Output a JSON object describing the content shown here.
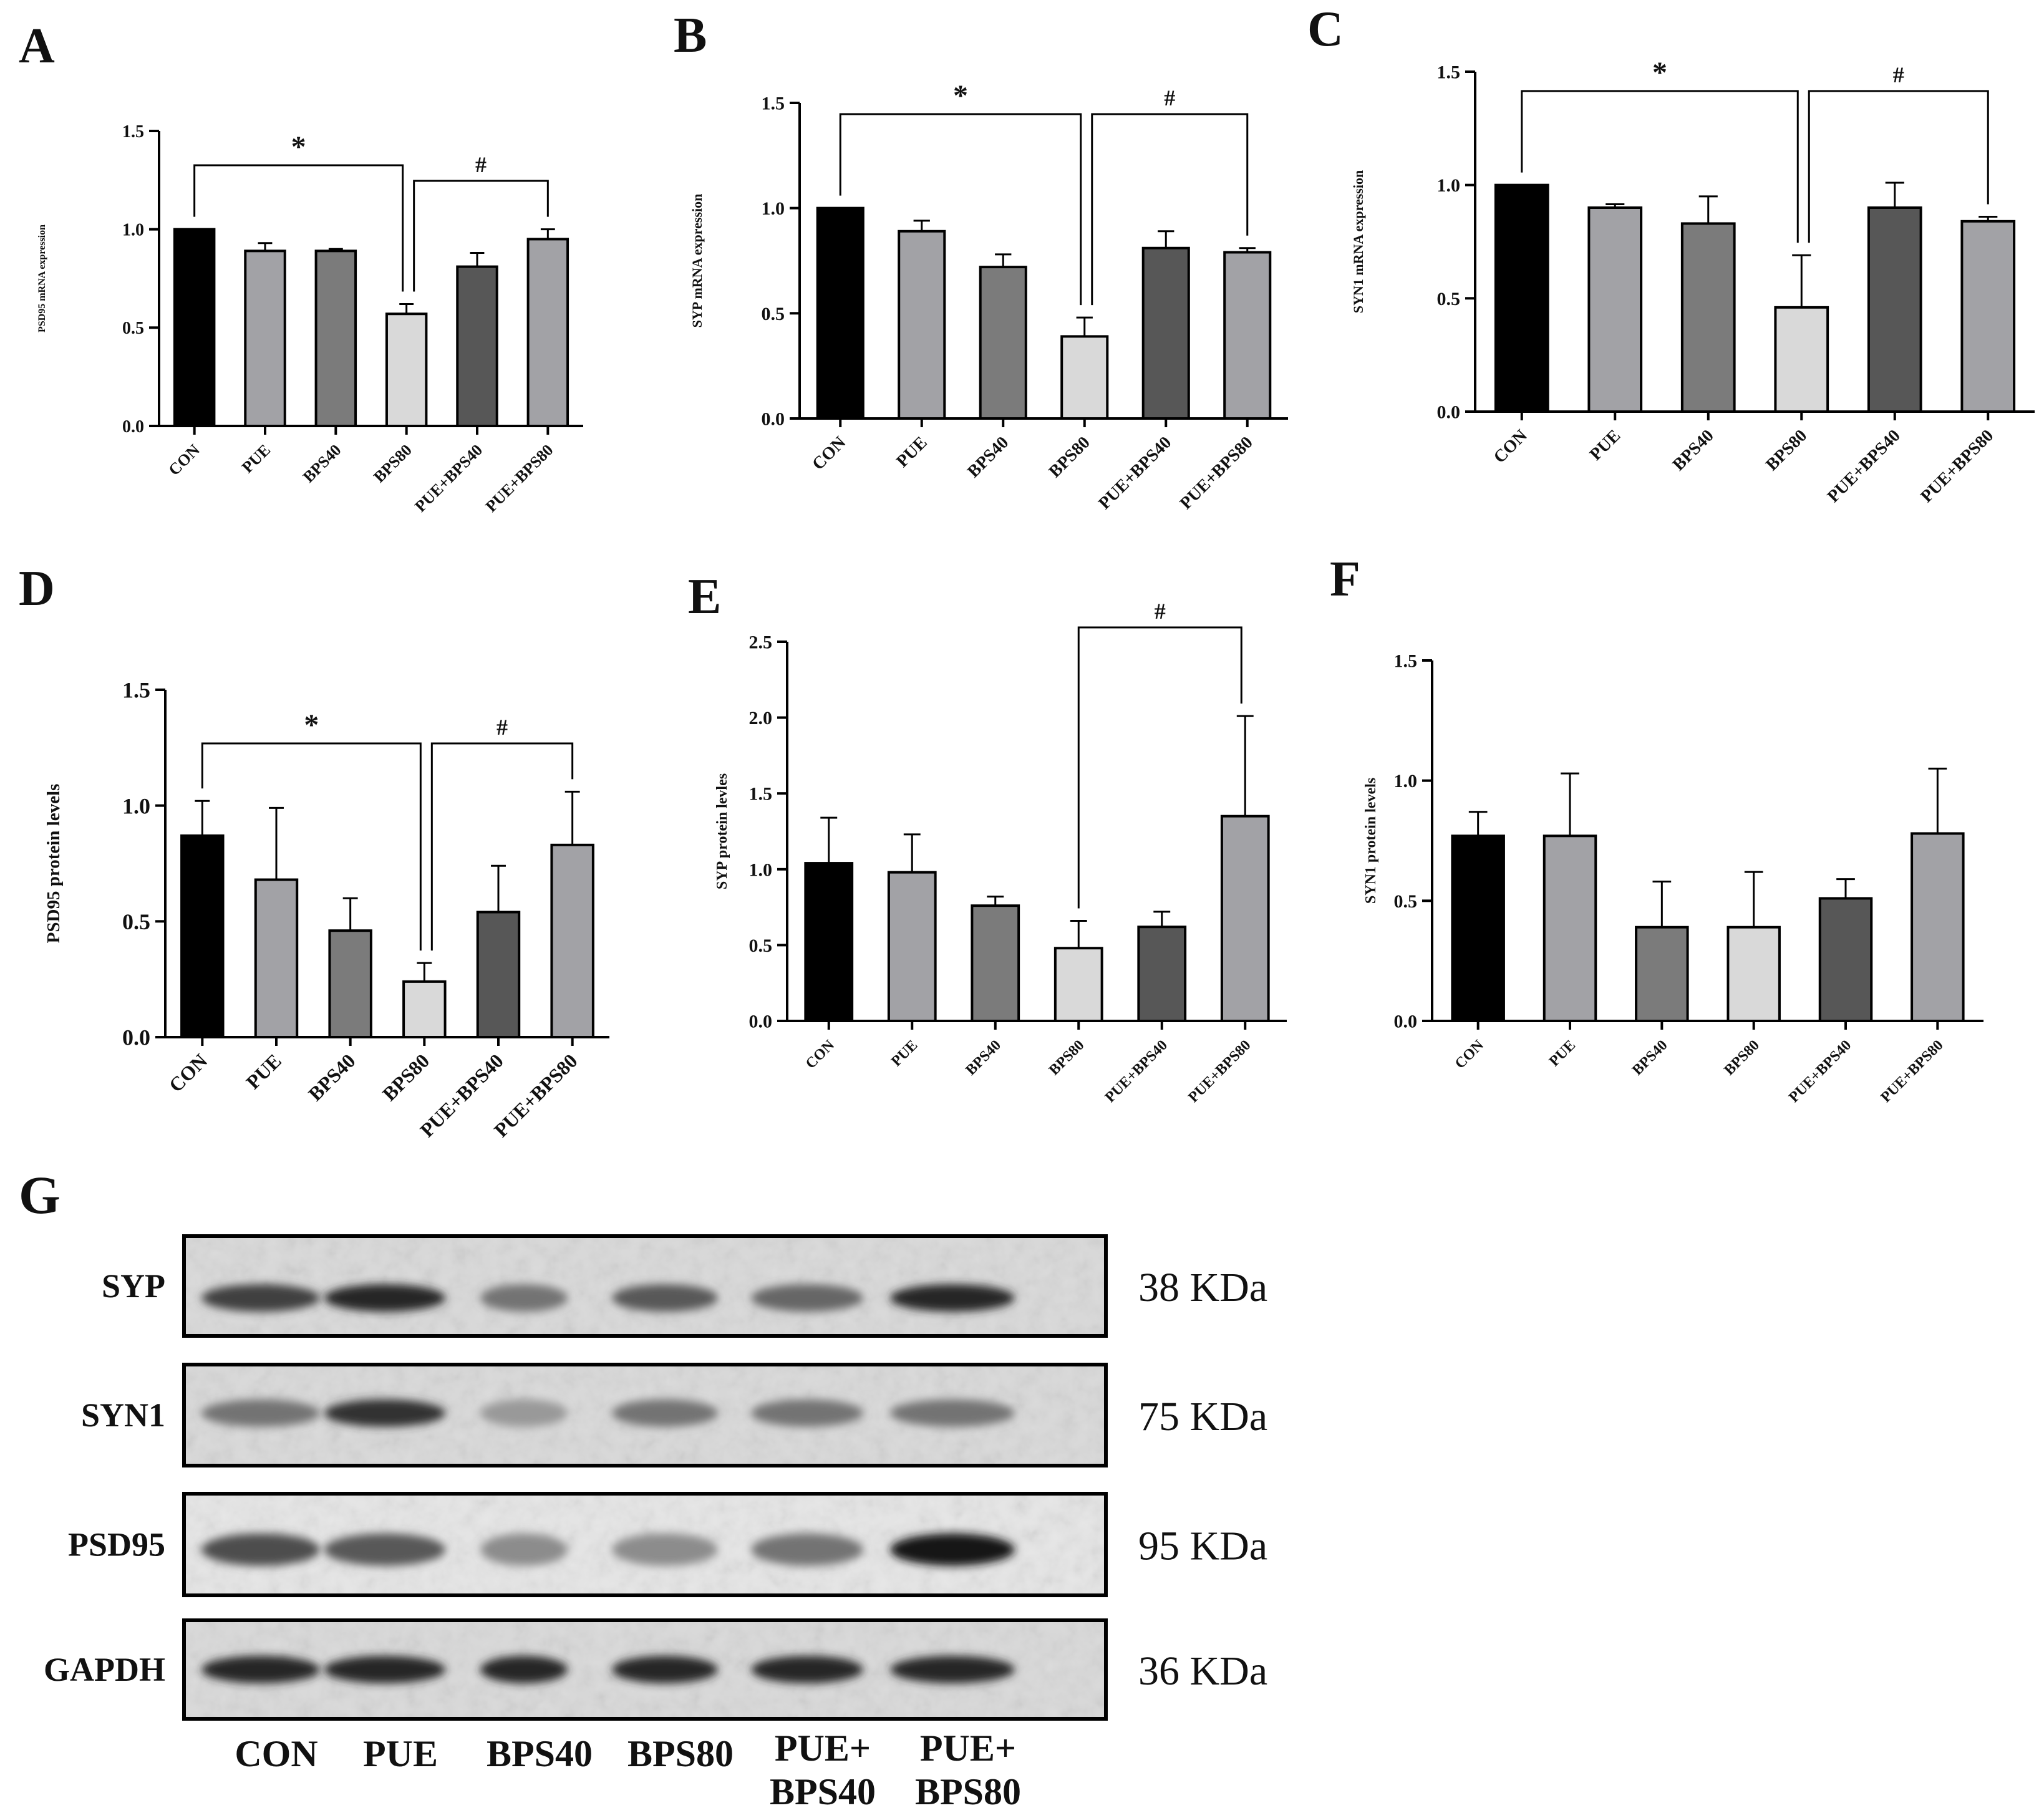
{
  "figure": {
    "panel_letters": [
      "A",
      "B",
      "C",
      "D",
      "E",
      "F",
      "G"
    ]
  },
  "colors": {
    "CON": "#000000",
    "PUE": "#a2a2a6",
    "BPS40": "#7b7b7b",
    "BPS80": "#d9d9d9",
    "PUE+BPS40": "#575757",
    "PUE+BPS80": "#a2a2a6"
  },
  "chart_data": [
    {
      "panel": "A",
      "type": "bar",
      "categories": [
        "CON",
        "PUE",
        "BPS40",
        "BPS80",
        "PUE+BPS40",
        "PUE+BPS80"
      ],
      "values": [
        1.0,
        0.89,
        0.89,
        0.57,
        0.81,
        0.95
      ],
      "errors": [
        0.0,
        0.04,
        0.01,
        0.05,
        0.07,
        0.05
      ],
      "ylabel": "PSD95 mRNA expression",
      "ylim": [
        0,
        1.5
      ],
      "yticks": [
        "0.0",
        "0.5",
        "1.0",
        "1.5"
      ],
      "significance": [
        {
          "symbol": "*",
          "from": "CON",
          "to": "BPS80"
        },
        {
          "symbol": "#",
          "from": "BPS80",
          "to": "PUE+BPS80"
        }
      ]
    },
    {
      "panel": "B",
      "type": "bar",
      "categories": [
        "CON",
        "PUE",
        "BPS40",
        "BPS80",
        "PUE+BPS40",
        "PUE+BPS80"
      ],
      "values": [
        1.0,
        0.89,
        0.72,
        0.39,
        0.81,
        0.79
      ],
      "errors": [
        0.0,
        0.05,
        0.06,
        0.09,
        0.08,
        0.02
      ],
      "ylabel": "SYP mRNA expression",
      "ylim": [
        0,
        1.5
      ],
      "yticks": [
        "0.0",
        "0.5",
        "1.0",
        "1.5"
      ],
      "significance": [
        {
          "symbol": "*",
          "from": "CON",
          "to": "BPS80"
        },
        {
          "symbol": "#",
          "from": "BPS80",
          "to": "PUE+BPS80"
        }
      ]
    },
    {
      "panel": "C",
      "type": "bar",
      "categories": [
        "CON",
        "PUE",
        "BPS40",
        "BPS80",
        "PUE+BPS40",
        "PUE+BPS80"
      ],
      "values": [
        1.0,
        0.9,
        0.83,
        0.46,
        0.9,
        0.84
      ],
      "errors": [
        0.0,
        0.015,
        0.12,
        0.23,
        0.11,
        0.02
      ],
      "ylabel": "SYN1 mRNA expression",
      "ylim": [
        0,
        1.5
      ],
      "yticks": [
        "0.0",
        "0.5",
        "1.0",
        "1.5"
      ],
      "significance": [
        {
          "symbol": "*",
          "from": "CON",
          "to": "BPS80"
        },
        {
          "symbol": "#",
          "from": "BPS80",
          "to": "PUE+BPS80"
        }
      ]
    },
    {
      "panel": "D",
      "type": "bar",
      "categories": [
        "CON",
        "PUE",
        "BPS40",
        "BPS80",
        "PUE+BPS40",
        "PUE+BPS80"
      ],
      "values": [
        0.87,
        0.68,
        0.46,
        0.24,
        0.54,
        0.83
      ],
      "errors": [
        0.15,
        0.31,
        0.14,
        0.08,
        0.2,
        0.23
      ],
      "ylabel": "PSD95 protein levels",
      "ylim": [
        0,
        1.5
      ],
      "yticks": [
        "0.0",
        "0.5",
        "1.0",
        "1.5"
      ],
      "significance": [
        {
          "symbol": "*",
          "from": "CON",
          "to": "BPS80"
        },
        {
          "symbol": "#",
          "from": "BPS80",
          "to": "PUE+BPS80"
        }
      ]
    },
    {
      "panel": "E",
      "type": "bar",
      "categories": [
        "CON",
        "PUE",
        "BPS40",
        "BPS80",
        "PUE+BPS40",
        "PUE+BPS80"
      ],
      "values": [
        1.04,
        0.98,
        0.76,
        0.48,
        0.62,
        1.35
      ],
      "errors": [
        0.3,
        0.25,
        0.06,
        0.18,
        0.1,
        0.66
      ],
      "ylabel": "SYP protein levles",
      "ylim": [
        0,
        2.5
      ],
      "yticks": [
        "0.0",
        "0.5",
        "1.0",
        "1.5",
        "2.0",
        "2.5"
      ],
      "significance": [
        {
          "symbol": "#",
          "from": "BPS80",
          "to": "PUE+BPS80"
        }
      ]
    },
    {
      "panel": "F",
      "type": "bar",
      "categories": [
        "CON",
        "PUE",
        "BPS40",
        "BPS80",
        "PUE+BPS40",
        "PUE+BPS80"
      ],
      "values": [
        0.77,
        0.77,
        0.39,
        0.39,
        0.51,
        0.78
      ],
      "errors": [
        0.1,
        0.26,
        0.19,
        0.23,
        0.08,
        0.27
      ],
      "ylabel": "SYN1 protein levels",
      "ylim": [
        0,
        1.5
      ],
      "yticks": [
        "0.0",
        "0.5",
        "1.0",
        "1.5"
      ],
      "significance": []
    }
  ],
  "blot": {
    "rows": [
      {
        "label": "SYP",
        "kda": "38 KDa"
      },
      {
        "label": "SYN1",
        "kda": "75 KDa"
      },
      {
        "label": "PSD95",
        "kda": "95 KDa"
      },
      {
        "label": "GAPDH",
        "kda": "36 KDa"
      }
    ],
    "lanes": [
      {
        "line1": "CON",
        "line2": ""
      },
      {
        "line1": "PUE",
        "line2": ""
      },
      {
        "line1": "BPS40",
        "line2": ""
      },
      {
        "line1": "BPS80",
        "line2": ""
      },
      {
        "line1": "PUE+",
        "line2": "BPS40"
      },
      {
        "line1": "PUE+",
        "line2": "BPS80"
      }
    ]
  }
}
